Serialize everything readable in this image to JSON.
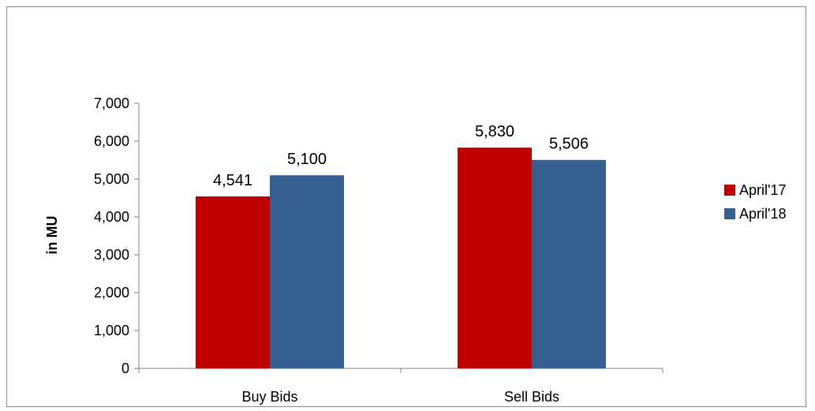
{
  "chart_data": {
    "type": "bar",
    "categories": [
      "Buy Bids",
      "Sell Bids"
    ],
    "series": [
      {
        "name": "April'17",
        "values": [
          4541,
          5830
        ],
        "color": "#c00000"
      },
      {
        "name": "April'18",
        "values": [
          5100,
          5506
        ],
        "color": "#376092"
      }
    ],
    "data_labels": [
      [
        "4,541",
        "5,830"
      ],
      [
        "5,100",
        "5,506"
      ]
    ],
    "ylabel": "in MU",
    "ylim": [
      0,
      7000
    ],
    "yticks": [
      0,
      1000,
      2000,
      3000,
      4000,
      5000,
      6000,
      7000
    ],
    "ytick_labels": [
      "0",
      "1,000",
      "2,000",
      "3,000",
      "4,000",
      "5,000",
      "6,000",
      "7,000"
    ],
    "grid": false,
    "legend_position": "right"
  }
}
